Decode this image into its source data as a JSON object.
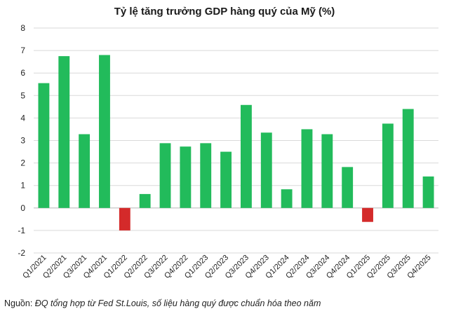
{
  "chart_data": {
    "type": "bar",
    "title": "Tỷ lệ tăng trưởng GDP hàng quý của Mỹ (%)",
    "xlabel": "",
    "ylabel": "",
    "ylim": [
      -2,
      8
    ],
    "yticks": [
      "8",
      "7",
      "6",
      "5",
      "4",
      "3",
      "2",
      "1",
      "0",
      "-1",
      "-2"
    ],
    "categories": [
      "Q1/2021",
      "Q2/2021",
      "Q3/2021",
      "Q4/2021",
      "Q1/2022",
      "Q2/2022",
      "Q3/2022",
      "Q4/2022",
      "Q1/2023",
      "Q2/2023",
      "Q3/2023",
      "Q4/2023",
      "Q1/2024",
      "Q2/2024",
      "Q3/2024",
      "Q4/2024",
      "Q1/2025",
      "Q2/2025",
      "Q3/2025",
      "Q4/2025"
    ],
    "values": [
      5.55,
      6.75,
      3.28,
      6.8,
      -1.0,
      0.62,
      2.88,
      2.73,
      2.88,
      2.5,
      4.58,
      3.35,
      0.83,
      3.5,
      3.28,
      1.82,
      -0.62,
      3.75,
      4.4,
      1.4
    ],
    "colors": {
      "positive": "#22bb5b",
      "negative": "#d42a2a",
      "grid": "#d9d9d9",
      "axis": "#bfbfbf"
    },
    "grid": true,
    "legend": "none"
  },
  "footer": {
    "source_label": "Nguồn:",
    "source_text": " ĐQ tổng hợp từ Fed St.Louis, số liệu hàng quý được chuẩn hóa theo năm"
  }
}
